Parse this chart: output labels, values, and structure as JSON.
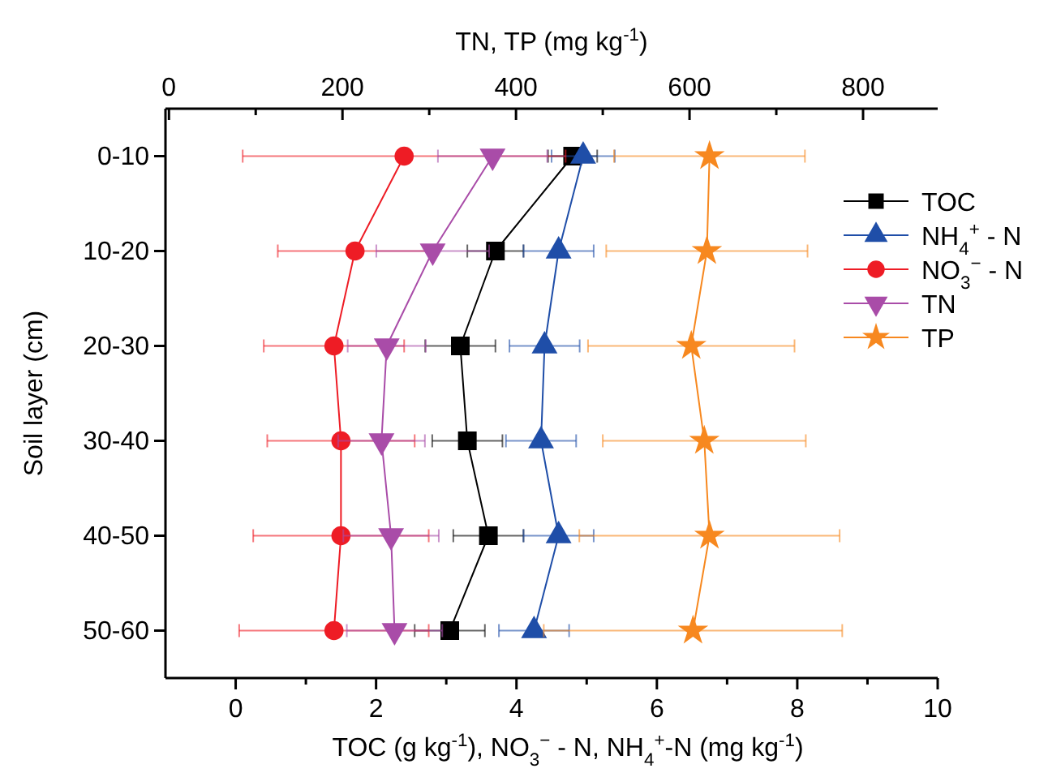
{
  "chart_data": {
    "type": "line",
    "orientation": "horizontal",
    "categories": [
      "0-10",
      "10-20",
      "20-30",
      "30-40",
      "40-50",
      "50-60"
    ],
    "xlabel": "TOC (g kg$^{-1}$), NO$_{3}$$^{−}$ - N, NH$_{4}$$^{+}$-N (mg kg$^{-1}$)",
    "x2label": "TN, TP (mg kg$^{-1}$)",
    "ylabel": "Soil layer (cm)",
    "xlim": [
      -1,
      10
    ],
    "xticks": [
      0,
      {
        "value": 1,
        "label": null
      },
      2,
      {
        "value": 3,
        "label": null
      },
      4,
      {
        "value": 5,
        "label": null
      },
      6,
      {
        "value": 7,
        "label": null
      },
      8,
      {
        "value": 9,
        "label": null
      },
      10
    ],
    "x2lim": [
      -4,
      886
    ],
    "x2ticks": [
      0,
      {
        "value": 100,
        "label": null
      },
      200,
      {
        "value": 300,
        "label": null
      },
      400,
      {
        "value": 500,
        "label": null
      },
      600,
      {
        "value": 700,
        "label": null
      },
      800
    ],
    "legend": "right",
    "grid": false,
    "series": [
      {
        "name": "TOC",
        "color": "#000000",
        "marker": "square",
        "values": [
          4.8,
          3.7,
          3.2,
          3.3,
          3.6,
          3.05
        ],
        "errors": [
          0.35,
          0.4,
          0.5,
          0.5,
          0.5,
          0.5
        ]
      },
      {
        "name": "NH$_{4}$$^{+}$ - N",
        "color": "#1f4ea8",
        "marker": "triangle",
        "values": [
          4.95,
          4.6,
          4.4,
          4.35,
          4.6,
          4.25
        ],
        "errors": [
          0.45,
          0.5,
          0.5,
          0.5,
          0.5,
          0.5
        ]
      },
      {
        "name": "NO$_{3}$$^{−}$ - N",
        "color": "#ee1c25",
        "marker": "circle",
        "values": [
          2.4,
          1.7,
          1.4,
          1.5,
          1.5,
          1.4
        ],
        "errors": [
          2.3,
          1.1,
          1.0,
          1.05,
          1.25,
          1.35
        ]
      },
      {
        "name": "TN",
        "color": "#a94ca8",
        "marker": "triangle_down",
        "axis": "x2",
        "values": [
          373,
          304,
          251,
          245,
          256,
          260
        ],
        "errors": [
          63,
          65,
          45,
          50,
          55,
          55
        ]
      },
      {
        "name": "TP",
        "color": "#f7881f",
        "marker": "star",
        "axis": "x2",
        "values": [
          623,
          620,
          602,
          617,
          623,
          604
        ],
        "errors": [
          110,
          116,
          119,
          117,
          150,
          172
        ]
      }
    ]
  }
}
